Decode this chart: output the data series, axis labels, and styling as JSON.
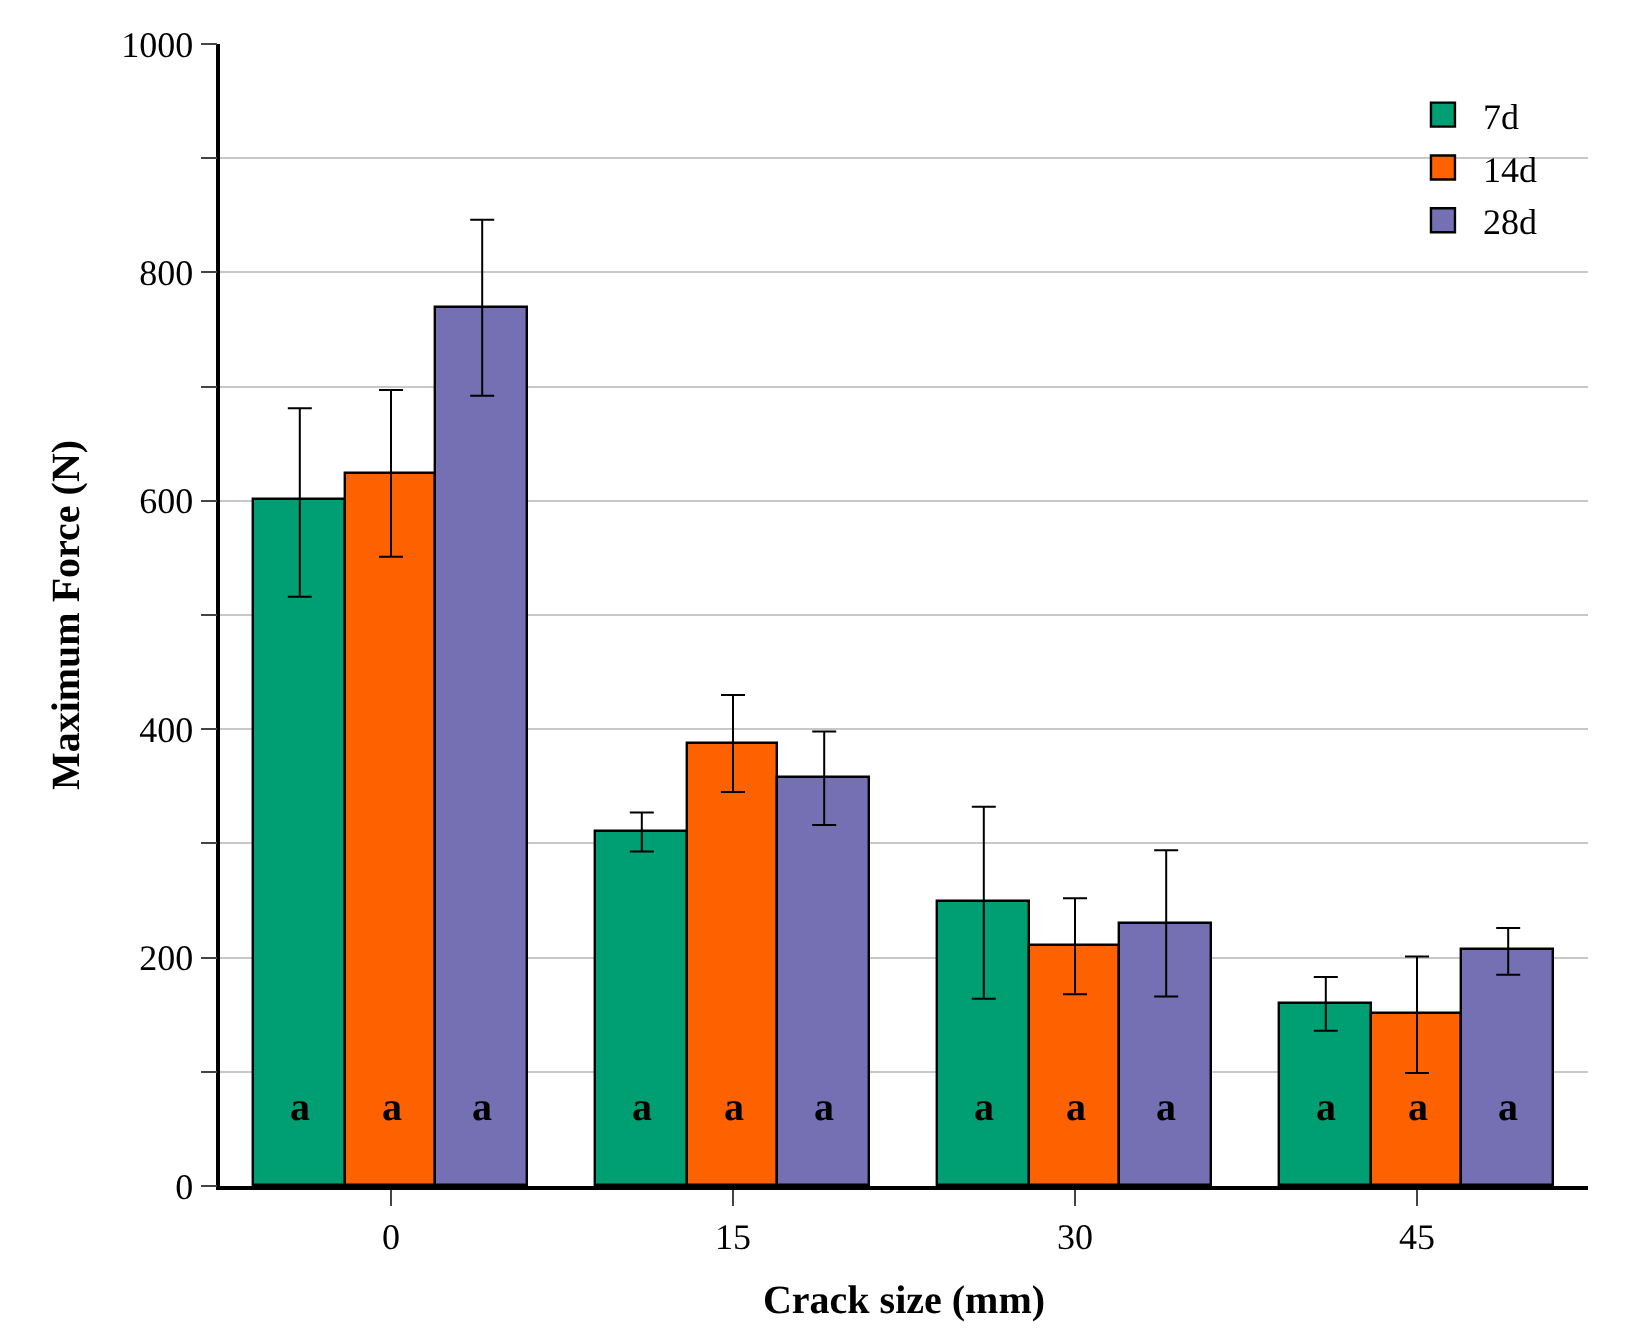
{
  "chart_data": {
    "type": "bar",
    "xlabel": "Crack size (mm)",
    "ylabel": "Maximum Force (N)",
    "categories": [
      "0",
      "15",
      "30",
      "45"
    ],
    "series": [
      {
        "name": "7d",
        "color": "#009e73",
        "values": [
          600,
          310,
          248,
          160
        ],
        "errors": [
          [
            516,
            681
          ],
          [
            293,
            327
          ],
          [
            164,
            332
          ],
          [
            136,
            183
          ]
        ]
      },
      {
        "name": "14d",
        "color": "#fe6100",
        "values": [
          624,
          387,
          211,
          150
        ],
        "errors": [
          [
            551,
            697
          ],
          [
            345,
            430
          ],
          [
            168,
            252
          ],
          [
            99,
            201
          ]
        ]
      },
      {
        "name": "28d",
        "color": "#7570b3",
        "values": [
          769,
          357,
          230,
          206
        ],
        "errors": [
          [
            692,
            846
          ],
          [
            316,
            398
          ],
          [
            166,
            294
          ],
          [
            185,
            226
          ]
        ]
      }
    ],
    "ylim": [
      0,
      1000
    ],
    "yticks": [
      0,
      {
        "value": 100,
        "label": null
      },
      200,
      {
        "value": 300,
        "label": null
      },
      400,
      {
        "value": 500,
        "label": null
      },
      600,
      {
        "value": 700,
        "label": null
      },
      800,
      {
        "value": 900,
        "label": null
      },
      1000
    ],
    "grid": "y",
    "legend": "top right",
    "annotations": [
      "a",
      "a",
      "a",
      "a",
      "a",
      "a",
      "a",
      "a",
      "a",
      "a",
      "a",
      "a"
    ]
  }
}
